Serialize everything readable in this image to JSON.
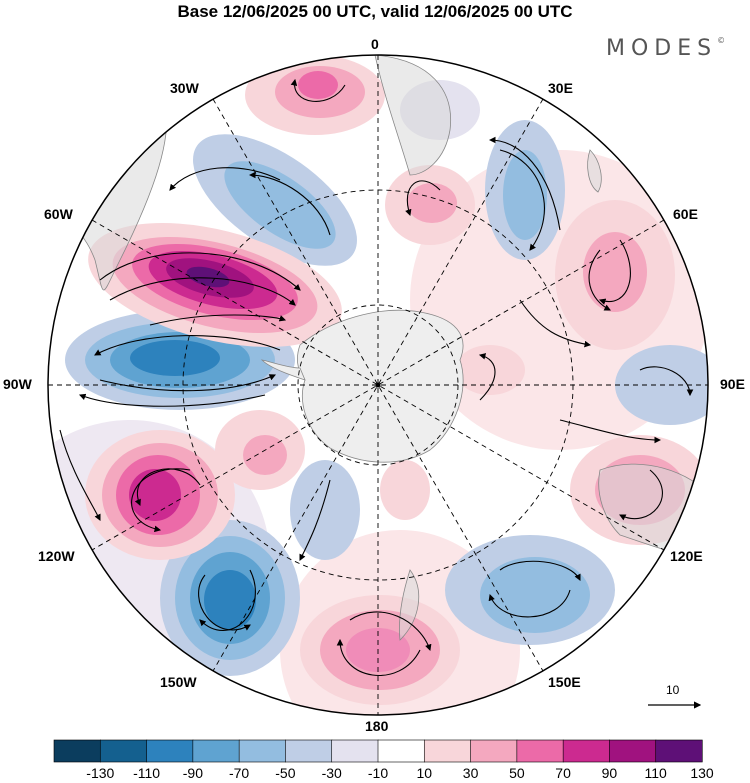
{
  "title": "Base 12/06/2025 00 UTC, valid 12/06/2025 00 UTC",
  "brand": {
    "name": "MODES",
    "mark": "©"
  },
  "longitude_labels": {
    "lon_0": "0",
    "lon_30e": "30E",
    "lon_60e": "60E",
    "lon_90e": "90E",
    "lon_120e": "120E",
    "lon_150e": "150E",
    "lon_180": "180",
    "lon_150w": "150W",
    "lon_120w": "120W",
    "lon_90w": "90W",
    "lon_60w": "60W",
    "lon_30w": "30W"
  },
  "vector_reference": {
    "label": "10"
  },
  "colorbar": {
    "colors": [
      "#0b3d5e",
      "#14608f",
      "#2d82bd",
      "#5fa3d1",
      "#93bde0",
      "#bfcee6",
      "#e4e2ef",
      "#ffffff",
      "#f8d6da",
      "#f4a8bf",
      "#ec6aa8",
      "#cc2a90",
      "#a0127f",
      "#5e1077"
    ],
    "labels": [
      "-130",
      "-110",
      "-90",
      "-70",
      "-50",
      "-30",
      "-10",
      "10",
      "30",
      "50",
      "70",
      "90",
      "110",
      "130"
    ]
  },
  "map_colors": {
    "land": "#d9d9d9",
    "antarctica": "#eeeeee",
    "coast": "#888888"
  }
}
